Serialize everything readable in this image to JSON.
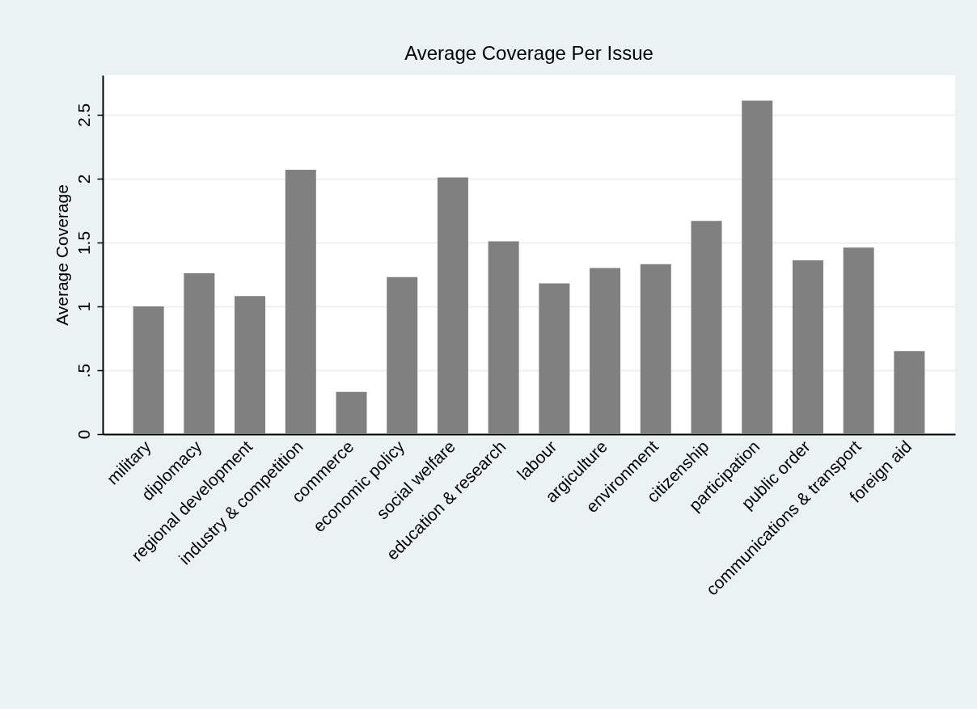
{
  "chart_data": {
    "type": "bar",
    "title": "Average Coverage Per Issue",
    "ylabel": "Average Coverage",
    "categories": [
      "military",
      "diplomacy",
      "regional development",
      "industry & competition",
      "commerce",
      "economic policy",
      "social welfare",
      "education & research",
      "labour",
      "argiculture",
      "environment",
      "citizenship",
      "participation",
      "public order",
      "communications & transport",
      "foreign aid"
    ],
    "values": [
      1.0,
      1.26,
      1.08,
      2.07,
      0.33,
      1.23,
      2.01,
      1.51,
      1.18,
      1.3,
      1.33,
      1.67,
      2.61,
      1.36,
      1.46,
      0.65
    ],
    "color": "#808080",
    "ylim": [
      0,
      2.81
    ],
    "yticks": [
      0,
      {
        "value": 0.5,
        "label": ".5"
      },
      1,
      1.5,
      2,
      2.5
    ],
    "grid": "y"
  }
}
